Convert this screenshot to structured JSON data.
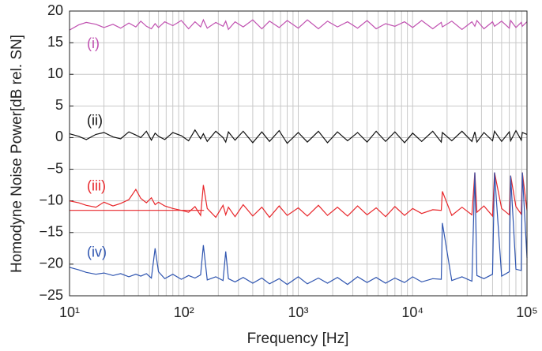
{
  "chart_data": {
    "type": "line",
    "xlabel": "Frequency [Hz]",
    "ylabel": "Homodyne Noise Power[dB rel. SN]",
    "xscale": "log",
    "grid": true,
    "xlim": [
      10,
      100000
    ],
    "ylim": [
      -25,
      20
    ],
    "xticks": [
      {
        "value": 10,
        "label": "10¹"
      },
      {
        "value": 100,
        "label": "10²"
      },
      {
        "value": 1000,
        "label": "10³"
      },
      {
        "value": 10000,
        "label": "10⁴"
      },
      {
        "value": 100000,
        "label": "10⁵"
      }
    ],
    "xminorticks": [
      20,
      30,
      40,
      50,
      60,
      70,
      80,
      90,
      200,
      300,
      400,
      500,
      600,
      700,
      800,
      900,
      2000,
      3000,
      4000,
      5000,
      6000,
      7000,
      8000,
      9000,
      20000,
      30000,
      40000,
      50000,
      60000,
      70000,
      80000,
      90000
    ],
    "yticks": [
      {
        "value": -25,
        "label": "−25"
      },
      {
        "value": -20,
        "label": "−20"
      },
      {
        "value": -15,
        "label": "−15"
      },
      {
        "value": -10,
        "label": "−10"
      },
      {
        "value": -5,
        "label": "−5"
      },
      0,
      5,
      10,
      15,
      20
    ],
    "x": [
      10,
      12,
      14,
      17,
      20,
      24,
      28,
      33,
      38,
      42,
      47,
      52,
      56,
      60,
      68,
      80,
      95,
      110,
      125,
      140,
      148,
      160,
      190,
      220,
      232,
      245,
      280,
      330,
      400,
      480,
      560,
      680,
      800,
      1000,
      1200,
      1500,
      1800,
      2200,
      2700,
      3300,
      4000,
      4800,
      5800,
      7000,
      8500,
      10000,
      12000,
      15000,
      17800,
      18200,
      22000,
      27000,
      33000,
      35000,
      36500,
      42000,
      50000,
      52000,
      60000,
      70000,
      72000,
      80000,
      89000,
      91000,
      100000
    ],
    "hline": {
      "y": -11.5,
      "x": [
        10,
        150
      ],
      "color": "#e8262a"
    },
    "series": [
      {
        "name": "(i)",
        "color": "#c050b0",
        "values": [
          17,
          17.8,
          18.2,
          17.9,
          17.4,
          17.9,
          17.3,
          18.1,
          17.5,
          18.4,
          17.6,
          17.2,
          18.0,
          17.4,
          18.3,
          17.7,
          18.5,
          17.2,
          18.3,
          17.5,
          18.6,
          17.3,
          18.2,
          17.6,
          18.4,
          17.1,
          18.3,
          17.5,
          18.6,
          17.2,
          18.4,
          17.4,
          18.5,
          17.3,
          18.6,
          17.2,
          18.4,
          17.5,
          18.3,
          17.3,
          18.5,
          17.2,
          18.0,
          17.6,
          18.3,
          17.4,
          18.5,
          17.2,
          18.2,
          17.5,
          18.4,
          17.1,
          18.3,
          17.6,
          18.5,
          17.2,
          18.3,
          17.6,
          18.4,
          17.3,
          18.5,
          17.4,
          18.2,
          17.6,
          18.3
        ]
      },
      {
        "name": "(ii)",
        "color": "#111111",
        "values": [
          0.6,
          0.2,
          -0.3,
          0.5,
          0.8,
          0.1,
          -0.2,
          0.9,
          0.4,
          0.0,
          1.0,
          -0.4,
          0.7,
          0.2,
          -0.3,
          0.8,
          0.3,
          -0.5,
          1.2,
          -0.2,
          0.6,
          -0.6,
          1.0,
          0.0,
          -0.7,
          0.9,
          -0.4,
          1.0,
          -0.8,
          0.9,
          -0.6,
          1.1,
          -0.9,
          0.8,
          -0.7,
          1.0,
          -0.8,
          0.9,
          -0.5,
          0.8,
          -0.7,
          1.0,
          -0.6,
          0.9,
          -0.8,
          0.7,
          -0.6,
          1.0,
          -0.7,
          0.8,
          -0.5,
          1.0,
          -0.6,
          0.9,
          -0.7,
          0.8,
          -0.5,
          1.0,
          -0.6,
          0.9,
          -0.5,
          1.1,
          -0.4,
          0.8,
          0.5
        ]
      },
      {
        "name": "(iii)",
        "color": "#e8262a",
        "values": [
          -10,
          -10.3,
          -10.7,
          -11,
          -10.2,
          -10.8,
          -10.4,
          -9.8,
          -8.2,
          -9.6,
          -10.3,
          -9.5,
          -10.6,
          -10.2,
          -10.8,
          -11.2,
          -11.5,
          -11.8,
          -10.9,
          -12.3,
          -7.5,
          -11.2,
          -12.6,
          -10.7,
          -12.2,
          -11.0,
          -12.5,
          -10.6,
          -12.4,
          -11.0,
          -12.6,
          -10.8,
          -12.3,
          -11.1,
          -12.4,
          -10.7,
          -12.3,
          -11.0,
          -12.4,
          -10.8,
          -12.2,
          -11.1,
          -12.5,
          -10.9,
          -12.3,
          -11.2,
          -12.0,
          -11.4,
          -11.5,
          -8.5,
          -12.3,
          -11.0,
          -12.2,
          -5.5,
          -11.8,
          -10.8,
          -12.4,
          -5.5,
          -11.2,
          -12.2,
          -6,
          -10.9,
          -12.1,
          -5.5,
          -11.5
        ]
      },
      {
        "name": "(iv)",
        "color": "#2f55b0",
        "values": [
          -20.5,
          -20.9,
          -21.3,
          -21.6,
          -21.4,
          -21.8,
          -21.5,
          -22,
          -21.6,
          -21.9,
          -21.5,
          -22.2,
          -17.5,
          -21.2,
          -22.3,
          -21.6,
          -22.4,
          -21.8,
          -22.2,
          -21.7,
          -17,
          -22.5,
          -22.0,
          -22.6,
          -18,
          -22.3,
          -22.8,
          -22.1,
          -23.0,
          -22.2,
          -23.1,
          -22.3,
          -23.2,
          -22.0,
          -23.1,
          -22.2,
          -23.0,
          -22.1,
          -23.2,
          -22.0,
          -22.9,
          -22.1,
          -23.0,
          -22.2,
          -22.9,
          -22.0,
          -22.8,
          -22.3,
          -22.4,
          -13.5,
          -22.6,
          -22.0,
          -22.7,
          -5.5,
          -21.8,
          -22.3,
          -21.6,
          -5.5,
          -21.9,
          -21.2,
          -6,
          -20.8,
          -21.0,
          -5.5,
          -19
        ]
      }
    ]
  }
}
